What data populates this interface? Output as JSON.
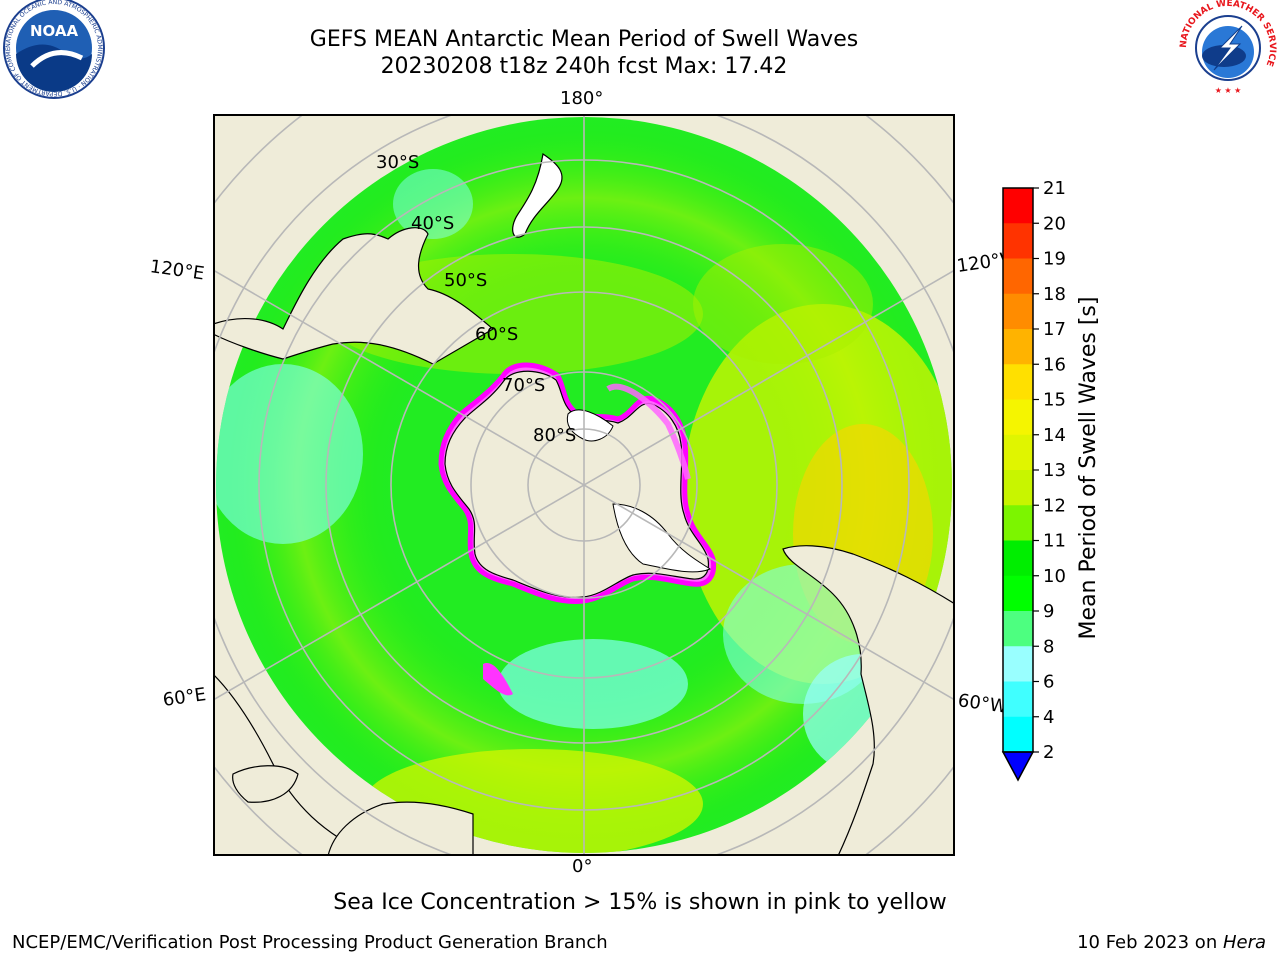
{
  "header": {
    "title_line1": "GEFS MEAN Antarctic Mean Period of Swell Waves",
    "title_line2": "20230208 t18z 240h fcst   Max: 17.42"
  },
  "logos": {
    "noaa_text": "NOAA",
    "noaa_ring_text": "NATIONAL OCEANIC AND ATMOSPHERIC ADMINISTRATION · U.S. DEPARTMENT OF COMMERCE",
    "nws_ring_text": "NATIONAL WEATHER SERVICE"
  },
  "map": {
    "longitude_labels": {
      "top": "180°",
      "bottom": "0°",
      "left_upper": "120°E",
      "left_lower": "60°E",
      "right_upper": "120°W",
      "right_lower": "60°W"
    },
    "latitude_labels": [
      "30°S",
      "40°S",
      "50°S",
      "60°S",
      "70°S",
      "80°S"
    ]
  },
  "colorbar": {
    "label": "Mean Period of Swell Waves [s]",
    "ticks": [
      "21",
      "20",
      "19",
      "18",
      "17",
      "16",
      "15",
      "14",
      "13",
      "12",
      "11",
      "10",
      "9",
      "8",
      "6",
      "4",
      "2"
    ],
    "colors": [
      "#ff0000",
      "#ff3300",
      "#ff6600",
      "#ff8c00",
      "#ffb300",
      "#ffe000",
      "#f5f500",
      "#e0f500",
      "#c8f500",
      "#7cf500",
      "#00ee00",
      "#00ff00",
      "#4dff80",
      "#99ffff",
      "#40ffff",
      "#00ffff",
      "#00c0ff",
      "#0070ff",
      "#0000ff"
    ]
  },
  "footer": {
    "caption": "Sea Ice Concentration > 15% is shown in pink to yellow",
    "credit_left": "NCEP/EMC/Verification Post Processing Product Generation Branch",
    "credit_right_prefix": "10 Feb 2023 on ",
    "credit_right_machine": "Hera"
  }
}
